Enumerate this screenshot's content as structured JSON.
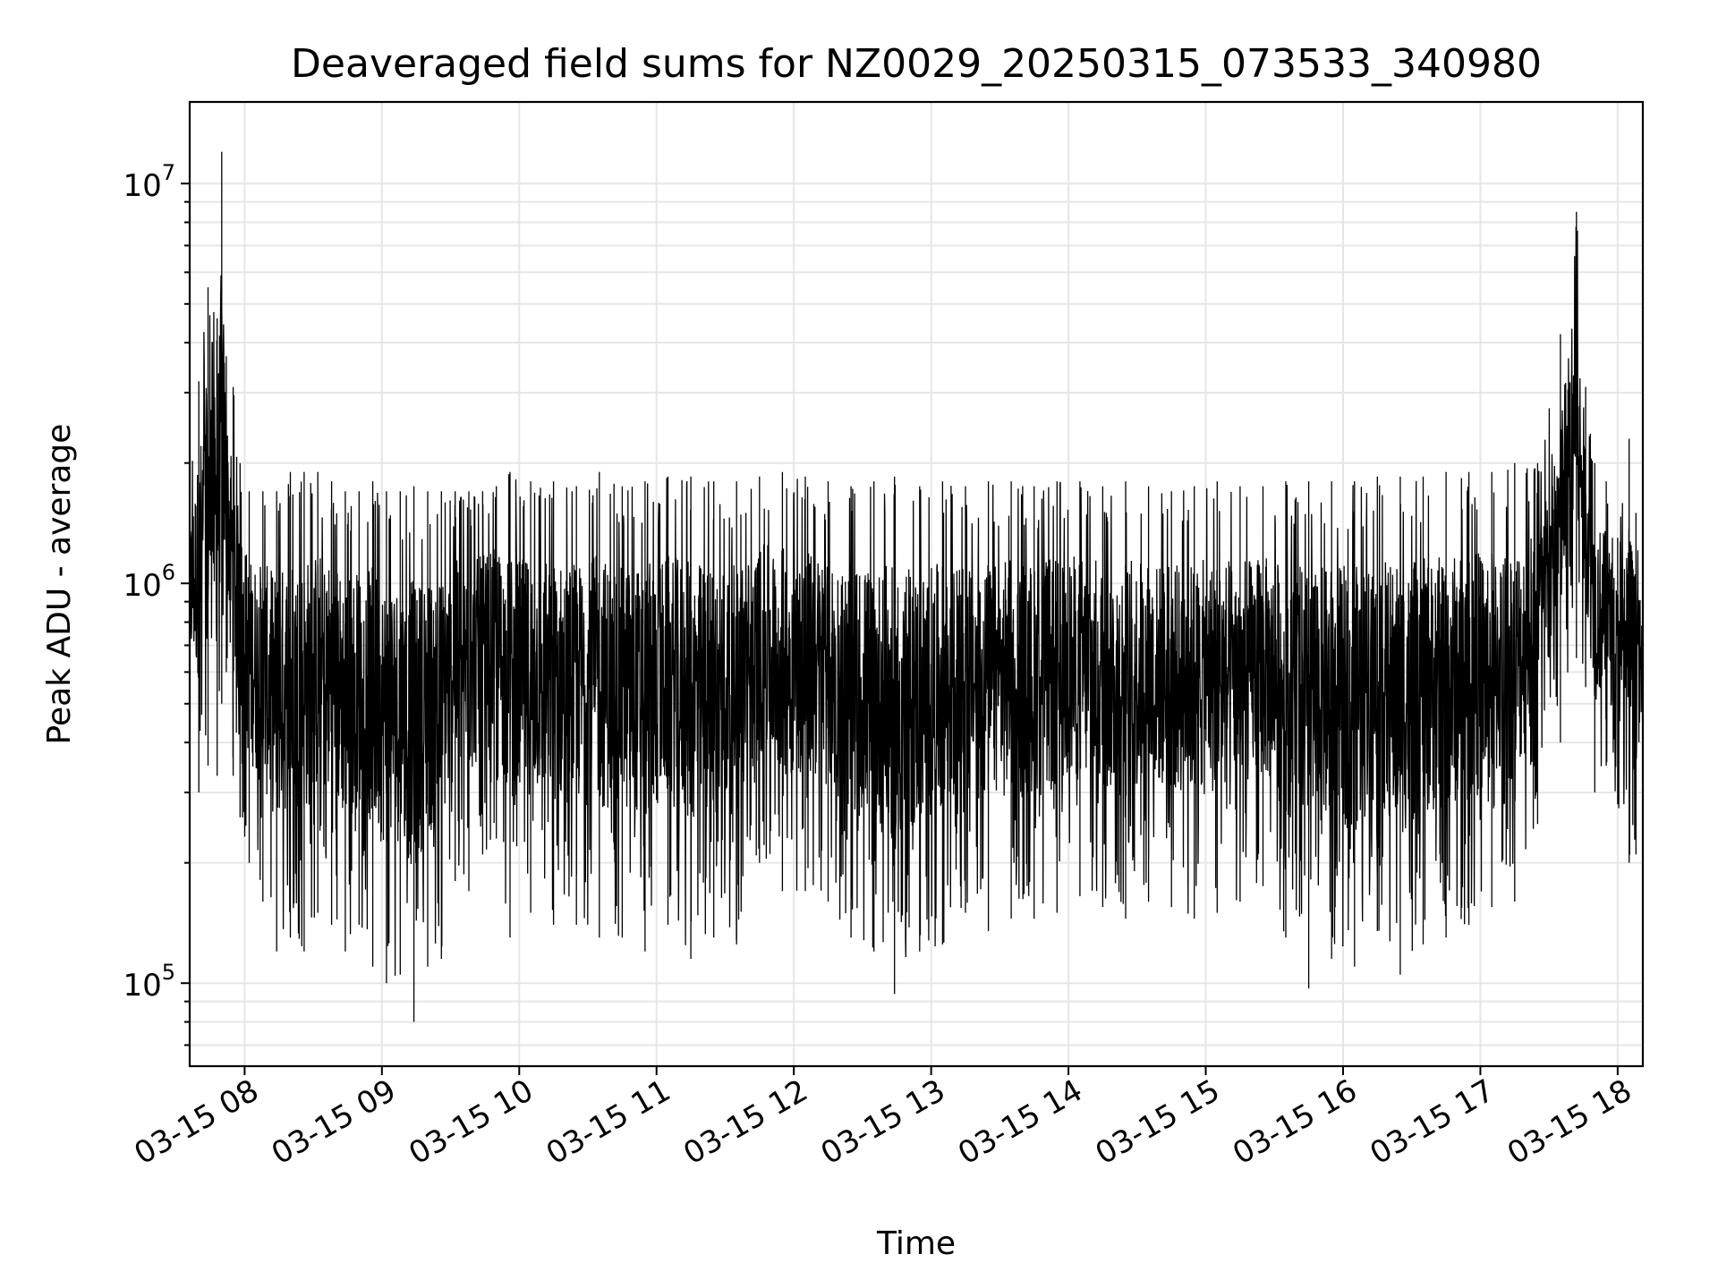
{
  "chart_data": {
    "type": "line",
    "title": "Deaveraged field sums for NZ0029_20250315_073533_340980",
    "xlabel": "Time",
    "ylabel": "Peak ADU - average",
    "y_scale": "log",
    "ylim": [
      62000,
      16000000
    ],
    "xlim": [
      "03-15 07:36",
      "03-15 18:11"
    ],
    "x_tick_labels": [
      "03-15 08",
      "03-15 09",
      "03-15 10",
      "03-15 11",
      "03-15 12",
      "03-15 13",
      "03-15 14",
      "03-15 15",
      "03-15 16",
      "03-15 17",
      "03-15 18"
    ],
    "y_ticks": [
      {
        "base": "10",
        "exp": "5",
        "value": 100000
      },
      {
        "base": "10",
        "exp": "6",
        "value": 1000000
      },
      {
        "base": "10",
        "exp": "7",
        "value": 10000000
      }
    ],
    "grid": true,
    "line_color": "#000000",
    "grid_color": "#e6e6e6",
    "series": [
      {
        "x": [
          "03-15 07:36",
          "03-15 07:40",
          "03-15 07:44",
          "03-15 07:48",
          "03-15 07:50",
          "03-15 07:52",
          "03-15 07:55",
          "03-15 07:58",
          "03-15 08:02",
          "03-15 08:08",
          "03-15 08:14",
          "03-15 08:20",
          "03-15 08:26",
          "03-15 08:32",
          "03-15 08:38",
          "03-15 08:44",
          "03-15 08:50",
          "03-15 08:56",
          "03-15 09:02",
          "03-15 09:08",
          "03-15 09:14",
          "03-15 09:20",
          "03-15 09:26",
          "03-15 09:32",
          "03-15 09:38",
          "03-15 09:44",
          "03-15 09:50",
          "03-15 09:56",
          "03-15 10:05",
          "03-15 10:15",
          "03-15 10:25",
          "03-15 10:35",
          "03-15 10:45",
          "03-15 10:55",
          "03-15 11:05",
          "03-15 11:15",
          "03-15 11:25",
          "03-15 11:35",
          "03-15 11:45",
          "03-15 11:55",
          "03-15 12:05",
          "03-15 12:15",
          "03-15 12:25",
          "03-15 12:35",
          "03-15 12:44",
          "03-15 12:55",
          "03-15 13:05",
          "03-15 13:15",
          "03-15 13:25",
          "03-15 13:35",
          "03-15 13:45",
          "03-15 13:55",
          "03-15 14:05",
          "03-15 14:15",
          "03-15 14:25",
          "03-15 14:35",
          "03-15 14:45",
          "03-15 14:55",
          "03-15 15:05",
          "03-15 15:15",
          "03-15 15:25",
          "03-15 15:35",
          "03-15 15:45",
          "03-15 15:55",
          "03-15 16:05",
          "03-15 16:15",
          "03-15 16:25",
          "03-15 16:35",
          "03-15 16:45",
          "03-15 16:55",
          "03-15 17:05",
          "03-15 17:15",
          "03-15 17:25",
          "03-15 17:35",
          "03-15 17:42",
          "03-15 17:46",
          "03-15 17:50",
          "03-15 17:55",
          "03-15 18:00",
          "03-15 18:05",
          "03-15 18:08",
          "03-15 18:11"
        ],
        "low": [
          400000,
          300000,
          350000,
          330000,
          500000,
          600000,
          330000,
          260000,
          200000,
          160000,
          120000,
          130000,
          120000,
          150000,
          140000,
          120000,
          140000,
          110000,
          100000,
          105000,
          80000,
          110000,
          115000,
          180000,
          170000,
          210000,
          230000,
          130000,
          150000,
          140000,
          140000,
          130000,
          130000,
          120000,
          140000,
          115000,
          130000,
          125000,
          200000,
          170000,
          170000,
          160000,
          130000,
          120000,
          94000,
          120000,
          125000,
          150000,
          135000,
          145000,
          145000,
          150000,
          165000,
          155000,
          145000,
          160000,
          155000,
          145000,
          150000,
          160000,
          175000,
          130000,
          97000,
          115000,
          110000,
          135000,
          105000,
          125000,
          130000,
          140000,
          155000,
          160000,
          250000,
          400000,
          650000,
          550000,
          300000,
          350000,
          280000,
          200000,
          210000,
          330000
        ],
        "high": [
          1900000,
          3200000,
          5500000,
          4600000,
          12000000,
          3700000,
          3100000,
          2000000,
          1700000,
          1700000,
          1700000,
          1900000,
          1900000,
          1900000,
          1800000,
          1700000,
          1700000,
          1800000,
          1700000,
          1700000,
          1750000,
          1700000,
          1700000,
          1700000,
          1700000,
          1700000,
          1750000,
          1900000,
          1800000,
          1800000,
          1750000,
          1900000,
          1750000,
          1800000,
          1850000,
          1850000,
          1800000,
          1800000,
          1850000,
          1900000,
          1850000,
          1800000,
          1750000,
          1800000,
          1850000,
          1750000,
          1800000,
          1750000,
          1800000,
          1800000,
          1750000,
          1800000,
          1800000,
          1750000,
          1800000,
          1750000,
          1700000,
          1750000,
          1800000,
          1750000,
          1750000,
          1800000,
          1800000,
          1800000,
          1800000,
          1850000,
          1850000,
          1850000,
          1900000,
          1900000,
          1900000,
          2000000,
          2000000,
          4200000,
          8500000,
          3100000,
          2000000,
          1800000,
          1300000,
          2300000,
          1500000,
          1000000
        ]
      }
    ]
  }
}
